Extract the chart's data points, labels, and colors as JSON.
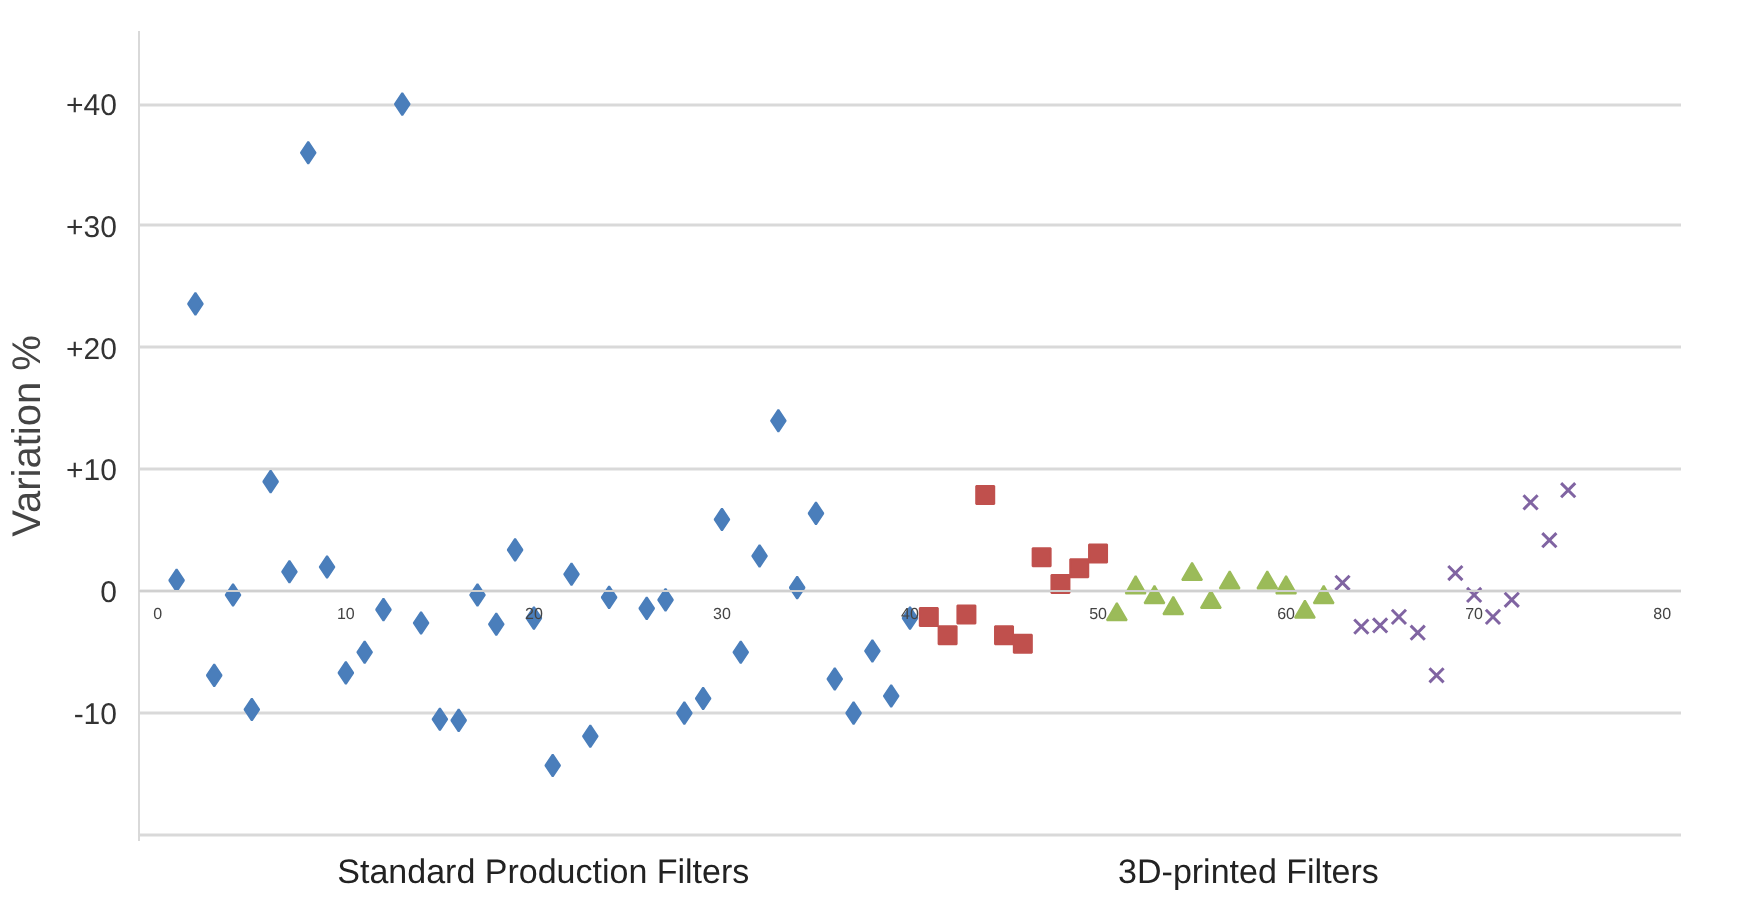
{
  "chart_data": {
    "type": "scatter",
    "ylabel": "Variation %",
    "xlim": [
      -1,
      81
    ],
    "xticks": [
      0,
      10,
      20,
      30,
      40,
      50,
      60,
      70,
      80
    ],
    "ylim": [
      -20.5,
      46
    ],
    "yticks": [
      {
        "value": -20,
        "label": null
      },
      {
        "value": -10,
        "label": "-10"
      },
      {
        "value": 0,
        "label": "0"
      },
      {
        "value": 10,
        "label": "+10"
      },
      {
        "value": 20,
        "label": "+20"
      },
      {
        "value": 30,
        "label": "+30"
      },
      {
        "value": 40,
        "label": "+40"
      }
    ],
    "grid": "y",
    "annotations": [
      "Standard Production Filters",
      "3D-printed Filters"
    ],
    "series": [
      {
        "color": "#4a7ebb",
        "marker": "diamond",
        "x": [
          1,
          2,
          3,
          4,
          5,
          6,
          7,
          8,
          9,
          10,
          11,
          12,
          13,
          14,
          15,
          16,
          17,
          18,
          19,
          20,
          21,
          22,
          23,
          24,
          26,
          27,
          28,
          29,
          30,
          31,
          32,
          33,
          34,
          35,
          36,
          37,
          38,
          39,
          40
        ],
        "values": [
          0.9,
          23.6,
          -6.9,
          -0.3,
          -9.7,
          9,
          1.6,
          36,
          2,
          -6.7,
          -5,
          -1.5,
          40,
          -2.6,
          -10.5,
          -10.6,
          -0.3,
          -2.7,
          3.4,
          -2.2,
          -14.3,
          1.4,
          -11.9,
          -0.5,
          -1.4,
          -0.7,
          -10,
          -8.8,
          5.9,
          -5,
          2.9,
          14,
          0.3,
          6.4,
          -7.2,
          -10,
          -4.9,
          -8.6,
          -2.2
        ]
      },
      {
        "color": "#c0504d",
        "marker": "square",
        "x": [
          41,
          42,
          43,
          44,
          45,
          46,
          47,
          48,
          49,
          50
        ],
        "values": [
          -2.1,
          -3.6,
          -1.9,
          7.9,
          -3.6,
          -4.3,
          2.8,
          0.6,
          1.9,
          3.1
        ]
      },
      {
        "color": "#9bbb59",
        "marker": "triangle",
        "x": [
          51,
          52,
          53,
          54,
          55,
          56,
          57,
          59,
          60,
          61,
          62
        ],
        "values": [
          -1.9,
          0.3,
          -0.5,
          -1.4,
          1.4,
          -0.9,
          0.7,
          0.7,
          0.3,
          -1.7,
          -0.5
        ]
      },
      {
        "color": "#8064a2",
        "marker": "cross",
        "x": [
          63,
          64,
          65,
          66,
          67,
          68,
          69,
          70,
          71,
          72,
          73,
          74,
          75
        ],
        "values": [
          0.7,
          -2.9,
          -2.8,
          -2.1,
          -3.4,
          -6.9,
          1.5,
          -0.3,
          -2.1,
          -0.7,
          7.3,
          4.2,
          8.3
        ]
      }
    ]
  }
}
